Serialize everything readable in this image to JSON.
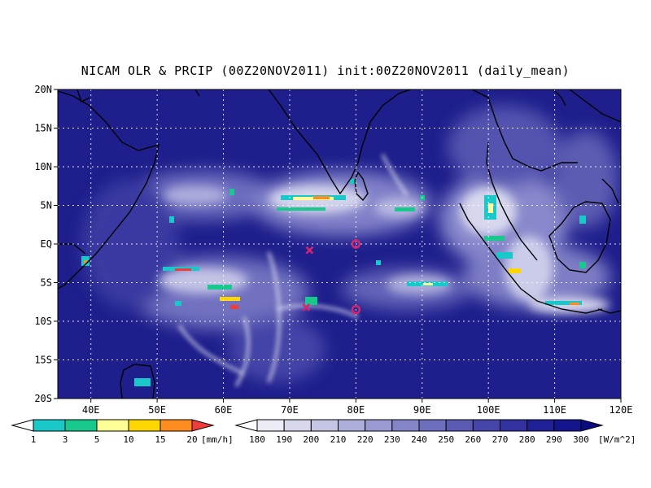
{
  "title": "NICAM OLR & PRCIP (00Z20NOV2011) init:00Z20NOV2011 (daily_mean)",
  "map": {
    "lon_range": [
      35,
      120
    ],
    "lat_range": [
      -20,
      20
    ],
    "lat_labels": [
      {
        "v": 20,
        "t": "20N"
      },
      {
        "v": 15,
        "t": "15N"
      },
      {
        "v": 10,
        "t": "10N"
      },
      {
        "v": 5,
        "t": "5N"
      },
      {
        "v": 0,
        "t": "EQ"
      },
      {
        "v": -5,
        "t": "5S"
      },
      {
        "v": -10,
        "t": "10S"
      },
      {
        "v": -15,
        "t": "15S"
      },
      {
        "v": -20,
        "t": "20S"
      }
    ],
    "lon_labels": [
      {
        "v": 40,
        "t": "40E"
      },
      {
        "v": 50,
        "t": "50E"
      },
      {
        "v": 60,
        "t": "60E"
      },
      {
        "v": 70,
        "t": "70E"
      },
      {
        "v": 80,
        "t": "80E"
      },
      {
        "v": 90,
        "t": "90E"
      },
      {
        "v": 100,
        "t": "100E"
      },
      {
        "v": 110,
        "t": "110E"
      },
      {
        "v": 120,
        "t": "120E"
      }
    ],
    "markers": [
      {
        "type": "x",
        "lon": 73,
        "lat": -0.8,
        "color": "#d6246e"
      },
      {
        "type": "x",
        "lon": 72.5,
        "lat": -8.2,
        "color": "#d6246e"
      },
      {
        "type": "o",
        "lon": 80,
        "lat": 0,
        "color": "#d6246e"
      },
      {
        "type": "o",
        "lon": 80,
        "lat": -8.5,
        "color": "#d6246e"
      }
    ]
  },
  "precip_colorbar": {
    "unit": "[mm/h]",
    "ticks": [
      "1",
      "3",
      "5",
      "10",
      "15",
      "20"
    ],
    "colors": [
      "#ffffff",
      "#19c8c8",
      "#19c88c",
      "#ffff96",
      "#ffd700",
      "#ff8c1e",
      "#f03c3c"
    ]
  },
  "olr_colorbar": {
    "unit": "[W/m^2]",
    "ticks": [
      "180",
      "190",
      "200",
      "210",
      "220",
      "230",
      "240",
      "250",
      "260",
      "270",
      "280",
      "290",
      "300"
    ],
    "colors": [
      "#ffffff",
      "#ececf6",
      "#d8d8ec",
      "#c4c4e4",
      "#aeaedc",
      "#9a9ad2",
      "#8484c8",
      "#6e6ebe",
      "#5a5ab4",
      "#4646aa",
      "#3232a0",
      "#202096",
      "#14148c",
      "#0a0a82"
    ]
  }
}
